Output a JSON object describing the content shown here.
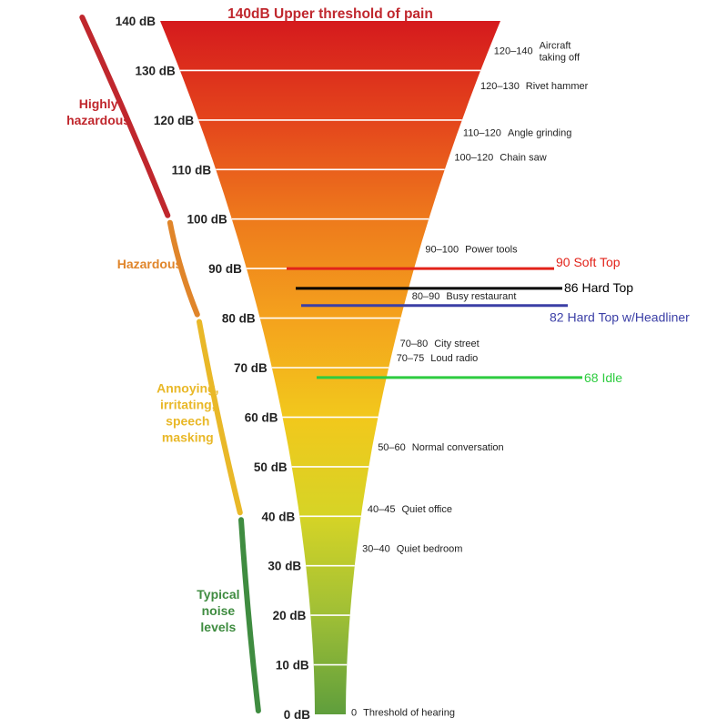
{
  "title": "140dB Upper threshold of pain",
  "db_ticks": [
    "140 dB",
    "130 dB",
    "120 dB",
    "110 dB",
    "100 dB",
    "90 dB",
    "80 dB",
    "70 dB",
    "60 dB",
    "50 dB",
    "40 dB",
    "30 dB",
    "20 dB",
    "10 dB",
    "0 dB"
  ],
  "noise_sources": [
    {
      "range": "120–140",
      "name": "Aircraft\ntaking off",
      "db": 134
    },
    {
      "range": "120–130",
      "name": "Rivet hammer",
      "db": 127
    },
    {
      "range": "110–120",
      "name": "Angle grinding",
      "db": 117.5
    },
    {
      "range": "100–120",
      "name": "Chain saw",
      "db": 112.5
    },
    {
      "range": "90–100",
      "name": "Power tools",
      "db": 94
    },
    {
      "range": "80–90",
      "name": "Busy restaurant",
      "db": 84.5
    },
    {
      "range": "70–80",
      "name": "City street",
      "db": 75
    },
    {
      "range": "70–75",
      "name": "Loud radio",
      "db": 72
    },
    {
      "range": "50–60",
      "name": "Normal conversation",
      "db": 54
    },
    {
      "range": "40–45",
      "name": "Quiet office",
      "db": 41.5
    },
    {
      "range": "30–40",
      "name": "Quiet bedroom",
      "db": 33.5
    },
    {
      "range": "0",
      "name": "Threshold of hearing",
      "db": 0.5
    }
  ],
  "bands": [
    {
      "label": "Highly\nhazardous",
      "color": "#c0272d",
      "from_db": 100,
      "to_db": 140
    },
    {
      "label": "Hazardous",
      "color": "#e0852a",
      "from_db": 80,
      "to_db": 100
    },
    {
      "label": "Annoying,\nirritating,\nspeech\nmasking",
      "color": "#e9b828",
      "from_db": 40,
      "to_db": 80
    },
    {
      "label": "Typical\nnoise\nlevels",
      "color": "#3f8c40",
      "from_db": 0,
      "to_db": 40
    }
  ],
  "markers": [
    {
      "label": "90 Soft Top",
      "db": 90,
      "color": "#e2231a"
    },
    {
      "label": "86 Hard Top",
      "db": 86,
      "color": "#000000"
    },
    {
      "label": "82 Hard Top w/Headliner",
      "db": 82,
      "color": "#3b3fa6"
    },
    {
      "label": "68 Idle",
      "db": 68,
      "color": "#2ecc40"
    }
  ],
  "gradient_colors": [
    "#d51a1d",
    "#e4451c",
    "#ee7a1c",
    "#f4a21d",
    "#f2c81c",
    "#d6d426",
    "#9fbf36",
    "#5f9e3c"
  ]
}
